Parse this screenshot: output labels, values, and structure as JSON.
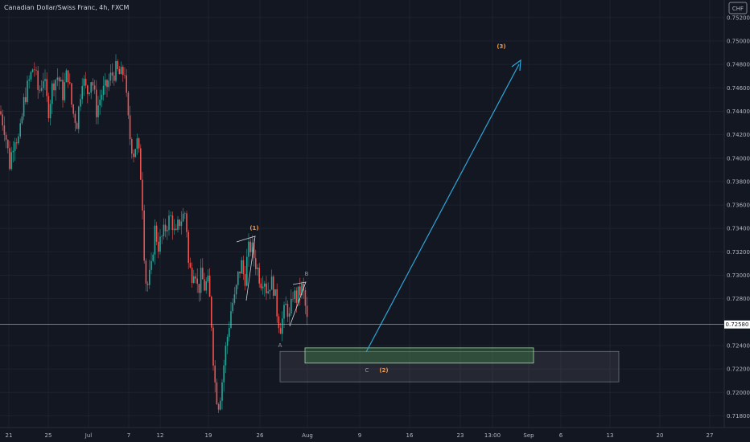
{
  "chart_data": {
    "type": "candlestick",
    "title": "Canadian Dollar/Swiss Franc, 4h, FXCM",
    "currency": "CHF",
    "ylim": [
      0.717,
      0.7535
    ],
    "y_ticks": [
      "0.75200",
      "0.75000",
      "0.74800",
      "0.74600",
      "0.74400",
      "0.74200",
      "0.74000",
      "0.73800",
      "0.73600",
      "0.73400",
      "0.73200",
      "0.73000",
      "0.72800",
      "0.72400",
      "0.72200",
      "0.72000",
      "0.71800"
    ],
    "x_ticks": [
      "21",
      "25",
      "Jul",
      "7",
      "12",
      "19",
      "26",
      "Aug",
      "9",
      "16",
      "23",
      "13:00",
      "Sep",
      "6",
      "13",
      "20",
      "27"
    ],
    "last_price": "0.72580",
    "colors": {
      "up": "#26a69a",
      "down": "#ef5350",
      "arrow": "#2ea6d8",
      "wave": "#f2994a",
      "zone": "#4caf50"
    },
    "annotations": {
      "wave1": "(1)",
      "wave2": "(2)",
      "wave3": "(3)",
      "A": "A",
      "B": "B",
      "C": "C"
    },
    "zones": [
      {
        "name": "target-zone-green",
        "from": 0.7225,
        "to": 0.7238
      },
      {
        "name": "target-zone-grey",
        "from": 0.7209,
        "to": 0.7235
      }
    ]
  }
}
